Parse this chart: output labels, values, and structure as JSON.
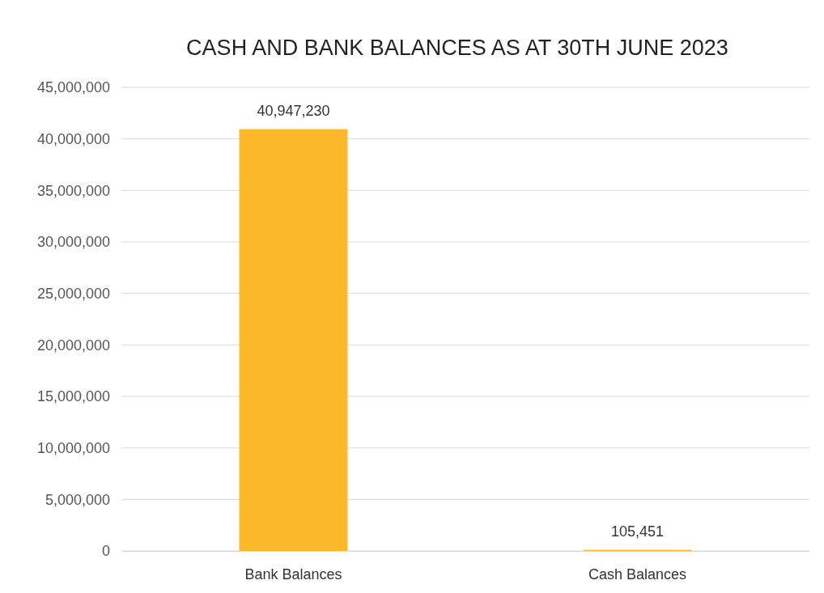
{
  "chart_data": {
    "type": "bar",
    "title": "CASH AND BANK BALANCES AS AT 30TH JUNE 2023",
    "categories": [
      "Bank Balances",
      "Cash Balances"
    ],
    "values": [
      40947230,
      105451
    ],
    "color": "#fbb829",
    "ylim": [
      0,
      45000000
    ],
    "yticks": [
      {
        "value": 0,
        "label": "0"
      },
      {
        "value": 5000000,
        "label": "5,000,000"
      },
      {
        "value": 10000000,
        "label": "10,000,000"
      },
      {
        "value": 15000000,
        "label": "15,000,000"
      },
      {
        "value": 20000000,
        "label": "20,000,000"
      },
      {
        "value": 25000000,
        "label": "25,000,000"
      },
      {
        "value": 30000000,
        "label": "30,000,000"
      },
      {
        "value": 35000000,
        "label": "35,000,000"
      },
      {
        "value": 40000000,
        "label": "40,000,000"
      },
      {
        "value": 45000000,
        "label": "45,000,000"
      }
    ],
    "grid": true,
    "value_labels": [
      "40,947,230",
      "105,451"
    ]
  }
}
